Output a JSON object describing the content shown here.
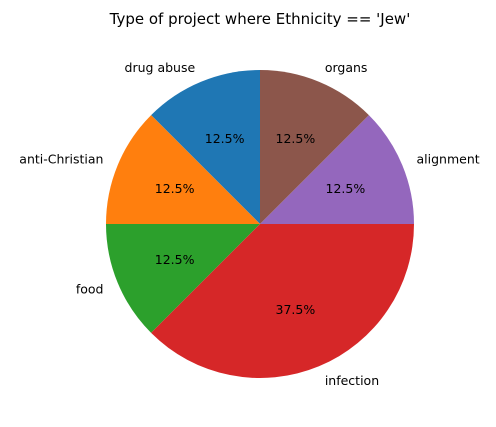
{
  "chart_data": {
    "type": "pie",
    "title": "Type of project where Ethnicity == 'Jew'",
    "slices": [
      {
        "label": "drug abuse",
        "value": 12.5,
        "pct_label": "12.5%",
        "color": "#1f77b4"
      },
      {
        "label": "anti-Christian",
        "value": 12.5,
        "pct_label": "12.5%",
        "color": "#ff7f0e"
      },
      {
        "label": "food",
        "value": 12.5,
        "pct_label": "12.5%",
        "color": "#2ca02c"
      },
      {
        "label": "infection",
        "value": 37.5,
        "pct_label": "37.5%",
        "color": "#d62728"
      },
      {
        "label": "alignment",
        "value": 12.5,
        "pct_label": "12.5%",
        "color": "#9467bd"
      },
      {
        "label": "organs",
        "value": 12.5,
        "pct_label": "12.5%",
        "color": "#8c564b"
      }
    ],
    "start_angle_deg": 90,
    "direction": "counterclockwise"
  }
}
